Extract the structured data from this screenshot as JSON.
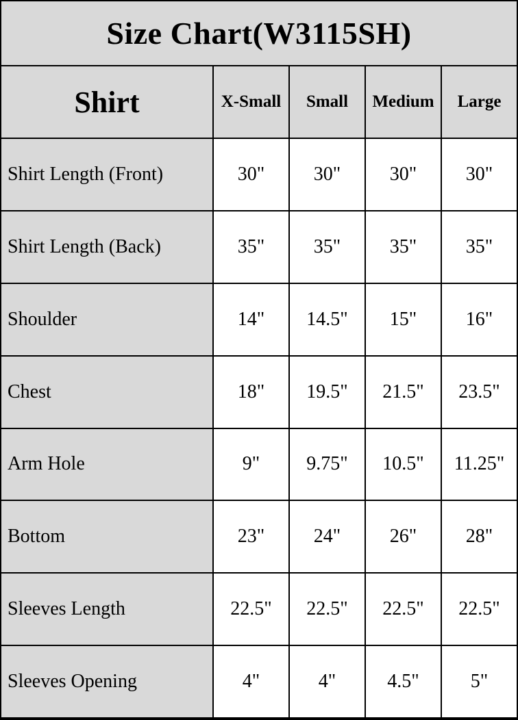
{
  "title": "Size Chart(W3115SH)",
  "colors": {
    "header_bg": "#d9d9d9",
    "value_bg": "#ffffff",
    "border": "#000000",
    "text": "#000000"
  },
  "table": {
    "product_label": "Shirt",
    "size_headers": [
      "X-Small",
      "Small",
      "Medium",
      "Large"
    ],
    "rows": [
      {
        "label": "Shirt Length (Front)",
        "values": [
          "30\"",
          "30\"",
          "30\"",
          "30\""
        ]
      },
      {
        "label": "Shirt Length (Back)",
        "values": [
          "35\"",
          "35\"",
          "35\"",
          "35\""
        ]
      },
      {
        "label": "Shoulder",
        "values": [
          "14\"",
          "14.5\"",
          "15\"",
          "16\""
        ]
      },
      {
        "label": "Chest",
        "values": [
          "18\"",
          "19.5\"",
          "21.5\"",
          "23.5\""
        ]
      },
      {
        "label": "Arm Hole",
        "values": [
          "9\"",
          "9.75\"",
          "10.5\"",
          "11.25\""
        ]
      },
      {
        "label": "Bottom",
        "values": [
          "23\"",
          "24\"",
          "26\"",
          "28\""
        ]
      },
      {
        "label": "Sleeves Length",
        "values": [
          "22.5\"",
          "22.5\"",
          "22.5\"",
          "22.5\""
        ]
      },
      {
        "label": "Sleeves Opening",
        "values": [
          "4\"",
          "4\"",
          "4.5\"",
          "5\""
        ]
      }
    ]
  },
  "chart_data": {
    "type": "table",
    "title": "Size Chart(W3115SH)",
    "columns": [
      "Shirt",
      "X-Small",
      "Small",
      "Medium",
      "Large"
    ],
    "rows": [
      [
        "Shirt Length (Front)",
        "30\"",
        "30\"",
        "30\"",
        "30\""
      ],
      [
        "Shirt Length (Back)",
        "35\"",
        "35\"",
        "35\"",
        "35\""
      ],
      [
        "Shoulder",
        "14\"",
        "14.5\"",
        "15\"",
        "16\""
      ],
      [
        "Chest",
        "18\"",
        "19.5\"",
        "21.5\"",
        "23.5\""
      ],
      [
        "Arm Hole",
        "9\"",
        "9.75\"",
        "10.5\"",
        "11.25\""
      ],
      [
        "Bottom",
        "23\"",
        "24\"",
        "26\"",
        "28\""
      ],
      [
        "Sleeves Length",
        "22.5\"",
        "22.5\"",
        "22.5\"",
        "22.5\""
      ],
      [
        "Sleeves Opening",
        "4\"",
        "4\"",
        "4.5\"",
        "5\""
      ]
    ]
  }
}
